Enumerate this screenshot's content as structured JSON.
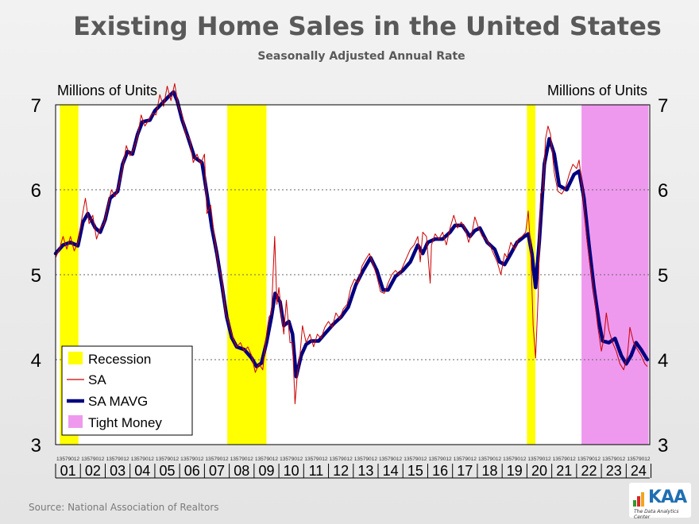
{
  "title": "Existing Home Sales in the United States",
  "subtitle": "Seasonally Adjusted Annual Rate",
  "source": "Source:  National Association of Realtors",
  "logo": {
    "name": "KAA",
    "tagline": "The Data Analytics Center"
  },
  "colors": {
    "recession": "#ffff00",
    "tight_money": "#ee99ee",
    "sa_line": "#cc0000",
    "mavg_line": "#000080",
    "gridline": "#666666"
  },
  "chart_data": {
    "type": "line",
    "ylabel_left": "Millions of Units",
    "ylabel_right": "Millions of Units",
    "ylim": [
      3,
      7
    ],
    "yticks": [
      "3",
      "4",
      "5",
      "6",
      "7"
    ],
    "xlim": [
      2001.0,
      2024.95
    ],
    "year_labels": [
      "01",
      "02",
      "03",
      "04",
      "05",
      "06",
      "07",
      "08",
      "09",
      "10",
      "11",
      "12",
      "13",
      "14",
      "15",
      "16",
      "17",
      "18",
      "19",
      "20",
      "21",
      "22",
      "23",
      "24"
    ],
    "month_tick_label": "13579012",
    "grid": "horizontal dotted",
    "legend_position": "bottom-left",
    "legend": [
      {
        "label": "Recession",
        "kind": "box",
        "color": "#ffff00"
      },
      {
        "label": "SA",
        "kind": "line",
        "color": "#cc0000"
      },
      {
        "label": "SA MAVG",
        "kind": "line",
        "color": "#000080"
      },
      {
        "label": "Tight Money",
        "kind": "box",
        "color": "#ee99ee"
      }
    ],
    "bands": [
      {
        "name": "Recession",
        "start": 2001.17,
        "end": 2001.92
      },
      {
        "name": "Recession",
        "start": 2007.92,
        "end": 2009.5
      },
      {
        "name": "Recession",
        "start": 2020.0,
        "end": 2020.34
      },
      {
        "name": "Tight Money",
        "start": 2022.2,
        "end": 2024.9
      }
    ],
    "series": [
      {
        "name": "SA MAVG",
        "points": [
          [
            2001.0,
            5.25
          ],
          [
            2001.3,
            5.35
          ],
          [
            2001.6,
            5.38
          ],
          [
            2001.9,
            5.34
          ],
          [
            2002.1,
            5.62
          ],
          [
            2002.3,
            5.72
          ],
          [
            2002.6,
            5.55
          ],
          [
            2002.8,
            5.5
          ],
          [
            2003.0,
            5.65
          ],
          [
            2003.2,
            5.9
          ],
          [
            2003.5,
            5.98
          ],
          [
            2003.7,
            6.3
          ],
          [
            2003.9,
            6.45
          ],
          [
            2004.1,
            6.42
          ],
          [
            2004.3,
            6.65
          ],
          [
            2004.5,
            6.8
          ],
          [
            2004.8,
            6.82
          ],
          [
            2005.0,
            6.93
          ],
          [
            2005.3,
            7.02
          ],
          [
            2005.5,
            7.08
          ],
          [
            2005.75,
            7.15
          ],
          [
            2005.9,
            7.05
          ],
          [
            2006.1,
            6.82
          ],
          [
            2006.3,
            6.65
          ],
          [
            2006.6,
            6.38
          ],
          [
            2006.9,
            6.32
          ],
          [
            2007.1,
            5.95
          ],
          [
            2007.3,
            5.55
          ],
          [
            2007.5,
            5.25
          ],
          [
            2007.7,
            4.88
          ],
          [
            2007.9,
            4.5
          ],
          [
            2008.1,
            4.26
          ],
          [
            2008.3,
            4.15
          ],
          [
            2008.6,
            4.12
          ],
          [
            2008.9,
            4.02
          ],
          [
            2009.1,
            3.92
          ],
          [
            2009.3,
            3.96
          ],
          [
            2009.5,
            4.2
          ],
          [
            2009.7,
            4.5
          ],
          [
            2009.85,
            4.78
          ],
          [
            2010.05,
            4.68
          ],
          [
            2010.2,
            4.4
          ],
          [
            2010.4,
            4.45
          ],
          [
            2010.55,
            4.3
          ],
          [
            2010.7,
            3.8
          ],
          [
            2010.9,
            4.05
          ],
          [
            2011.1,
            4.18
          ],
          [
            2011.3,
            4.22
          ],
          [
            2011.6,
            4.22
          ],
          [
            2011.9,
            4.32
          ],
          [
            2012.2,
            4.42
          ],
          [
            2012.5,
            4.5
          ],
          [
            2012.8,
            4.62
          ],
          [
            2013.1,
            4.88
          ],
          [
            2013.4,
            5.05
          ],
          [
            2013.7,
            5.2
          ],
          [
            2013.95,
            5.05
          ],
          [
            2014.2,
            4.82
          ],
          [
            2014.4,
            4.82
          ],
          [
            2014.7,
            4.98
          ],
          [
            2015.0,
            5.05
          ],
          [
            2015.3,
            5.15
          ],
          [
            2015.6,
            5.35
          ],
          [
            2015.8,
            5.25
          ],
          [
            2016.0,
            5.38
          ],
          [
            2016.3,
            5.42
          ],
          [
            2016.6,
            5.42
          ],
          [
            2016.9,
            5.5
          ],
          [
            2017.1,
            5.58
          ],
          [
            2017.4,
            5.58
          ],
          [
            2017.7,
            5.45
          ],
          [
            2017.9,
            5.52
          ],
          [
            2018.1,
            5.55
          ],
          [
            2018.4,
            5.38
          ],
          [
            2018.7,
            5.3
          ],
          [
            2018.9,
            5.15
          ],
          [
            2019.1,
            5.12
          ],
          [
            2019.3,
            5.22
          ],
          [
            2019.6,
            5.38
          ],
          [
            2019.9,
            5.45
          ],
          [
            2020.05,
            5.48
          ],
          [
            2020.2,
            5.25
          ],
          [
            2020.35,
            4.85
          ],
          [
            2020.5,
            5.4
          ],
          [
            2020.7,
            6.3
          ],
          [
            2020.9,
            6.6
          ],
          [
            2021.1,
            6.42
          ],
          [
            2021.3,
            6.05
          ],
          [
            2021.6,
            6.0
          ],
          [
            2021.9,
            6.18
          ],
          [
            2022.1,
            6.22
          ],
          [
            2022.3,
            5.9
          ],
          [
            2022.5,
            5.35
          ],
          [
            2022.7,
            4.85
          ],
          [
            2022.9,
            4.45
          ],
          [
            2023.05,
            4.22
          ],
          [
            2023.3,
            4.2
          ],
          [
            2023.55,
            4.25
          ],
          [
            2023.8,
            4.05
          ],
          [
            2024.0,
            3.95
          ],
          [
            2024.2,
            4.05
          ],
          [
            2024.4,
            4.2
          ],
          [
            2024.6,
            4.12
          ],
          [
            2024.85,
            4.0
          ]
        ]
      },
      {
        "name": "SA",
        "points": [
          [
            2001.0,
            5.2
          ],
          [
            2001.15,
            5.3
          ],
          [
            2001.3,
            5.45
          ],
          [
            2001.45,
            5.3
          ],
          [
            2001.6,
            5.45
          ],
          [
            2001.75,
            5.28
          ],
          [
            2001.9,
            5.38
          ],
          [
            2002.05,
            5.65
          ],
          [
            2002.2,
            5.9
          ],
          [
            2002.35,
            5.6
          ],
          [
            2002.5,
            5.7
          ],
          [
            2002.65,
            5.42
          ],
          [
            2002.8,
            5.55
          ],
          [
            2002.95,
            5.6
          ],
          [
            2003.1,
            5.8
          ],
          [
            2003.25,
            6.0
          ],
          [
            2003.4,
            5.92
          ],
          [
            2003.55,
            6.05
          ],
          [
            2003.7,
            6.25
          ],
          [
            2003.85,
            6.52
          ],
          [
            2004.0,
            6.4
          ],
          [
            2004.15,
            6.48
          ],
          [
            2004.3,
            6.62
          ],
          [
            2004.45,
            6.88
          ],
          [
            2004.6,
            6.75
          ],
          [
            2004.75,
            6.82
          ],
          [
            2004.9,
            6.9
          ],
          [
            2005.05,
            6.88
          ],
          [
            2005.2,
            7.12
          ],
          [
            2005.35,
            6.98
          ],
          [
            2005.5,
            7.22
          ],
          [
            2005.65,
            7.05
          ],
          [
            2005.8,
            7.25
          ],
          [
            2005.95,
            6.98
          ],
          [
            2006.1,
            6.88
          ],
          [
            2006.25,
            6.65
          ],
          [
            2006.4,
            6.6
          ],
          [
            2006.55,
            6.32
          ],
          [
            2006.7,
            6.42
          ],
          [
            2006.85,
            6.3
          ],
          [
            2007.0,
            6.42
          ],
          [
            2007.1,
            5.72
          ],
          [
            2007.25,
            5.82
          ],
          [
            2007.4,
            5.45
          ],
          [
            2007.55,
            5.12
          ],
          [
            2007.7,
            4.95
          ],
          [
            2007.85,
            4.55
          ],
          [
            2008.0,
            4.42
          ],
          [
            2008.15,
            4.25
          ],
          [
            2008.3,
            4.15
          ],
          [
            2008.45,
            4.2
          ],
          [
            2008.6,
            4.1
          ],
          [
            2008.75,
            4.15
          ],
          [
            2008.9,
            4.05
          ],
          [
            2009.05,
            3.85
          ],
          [
            2009.2,
            3.95
          ],
          [
            2009.35,
            3.88
          ],
          [
            2009.5,
            4.3
          ],
          [
            2009.6,
            4.5
          ],
          [
            2009.7,
            4.55
          ],
          [
            2009.83,
            5.45
          ],
          [
            2009.92,
            4.65
          ],
          [
            2010.0,
            4.85
          ],
          [
            2010.1,
            4.55
          ],
          [
            2010.2,
            4.3
          ],
          [
            2010.3,
            4.7
          ],
          [
            2010.45,
            4.2
          ],
          [
            2010.55,
            4.2
          ],
          [
            2010.65,
            3.48
          ],
          [
            2010.75,
            3.85
          ],
          [
            2010.85,
            4.05
          ],
          [
            2010.95,
            4.4
          ],
          [
            2011.1,
            4.2
          ],
          [
            2011.25,
            4.3
          ],
          [
            2011.4,
            4.15
          ],
          [
            2011.55,
            4.3
          ],
          [
            2011.7,
            4.25
          ],
          [
            2011.85,
            4.38
          ],
          [
            2012.0,
            4.45
          ],
          [
            2012.15,
            4.38
          ],
          [
            2012.3,
            4.55
          ],
          [
            2012.45,
            4.48
          ],
          [
            2012.6,
            4.6
          ],
          [
            2012.75,
            4.65
          ],
          [
            2012.9,
            4.85
          ],
          [
            2013.05,
            4.95
          ],
          [
            2013.2,
            4.9
          ],
          [
            2013.35,
            5.1
          ],
          [
            2013.5,
            5.18
          ],
          [
            2013.65,
            5.25
          ],
          [
            2013.8,
            5.12
          ],
          [
            2013.95,
            4.98
          ],
          [
            2014.1,
            4.8
          ],
          [
            2014.25,
            4.78
          ],
          [
            2014.4,
            4.9
          ],
          [
            2014.55,
            5.0
          ],
          [
            2014.7,
            5.05
          ],
          [
            2014.85,
            5.0
          ],
          [
            2015.0,
            5.1
          ],
          [
            2015.15,
            5.2
          ],
          [
            2015.3,
            5.3
          ],
          [
            2015.45,
            5.35
          ],
          [
            2015.6,
            5.45
          ],
          [
            2015.7,
            5.15
          ],
          [
            2015.8,
            5.5
          ],
          [
            2015.95,
            5.45
          ],
          [
            2016.1,
            4.9
          ],
          [
            2016.15,
            5.35
          ],
          [
            2016.3,
            5.48
          ],
          [
            2016.45,
            5.42
          ],
          [
            2016.6,
            5.5
          ],
          [
            2016.75,
            5.35
          ],
          [
            2016.9,
            5.55
          ],
          [
            2017.05,
            5.7
          ],
          [
            2017.2,
            5.55
          ],
          [
            2017.35,
            5.62
          ],
          [
            2017.5,
            5.55
          ],
          [
            2017.65,
            5.38
          ],
          [
            2017.8,
            5.52
          ],
          [
            2017.9,
            5.68
          ],
          [
            2018.05,
            5.55
          ],
          [
            2018.2,
            5.45
          ],
          [
            2018.35,
            5.42
          ],
          [
            2018.5,
            5.35
          ],
          [
            2018.65,
            5.25
          ],
          [
            2018.8,
            5.15
          ],
          [
            2018.95,
            5.0
          ],
          [
            2019.1,
            5.25
          ],
          [
            2019.2,
            5.2
          ],
          [
            2019.35,
            5.38
          ],
          [
            2019.5,
            5.3
          ],
          [
            2019.65,
            5.42
          ],
          [
            2019.8,
            5.45
          ],
          [
            2019.95,
            5.5
          ],
          [
            2020.05,
            5.75
          ],
          [
            2020.15,
            5.3
          ],
          [
            2020.25,
            4.4
          ],
          [
            2020.35,
            4.02
          ],
          [
            2020.45,
            4.75
          ],
          [
            2020.55,
            5.95
          ],
          [
            2020.65,
            6.0
          ],
          [
            2020.75,
            6.6
          ],
          [
            2020.85,
            6.75
          ],
          [
            2020.95,
            6.65
          ],
          [
            2021.1,
            6.2
          ],
          [
            2021.25,
            5.98
          ],
          [
            2021.4,
            5.95
          ],
          [
            2021.55,
            6.02
          ],
          [
            2021.7,
            6.18
          ],
          [
            2021.85,
            6.3
          ],
          [
            2022.0,
            6.25
          ],
          [
            2022.1,
            6.35
          ],
          [
            2022.25,
            5.98
          ],
          [
            2022.4,
            5.45
          ],
          [
            2022.55,
            5.1
          ],
          [
            2022.7,
            4.78
          ],
          [
            2022.85,
            4.4
          ],
          [
            2023.0,
            4.1
          ],
          [
            2023.1,
            4.25
          ],
          [
            2023.2,
            4.55
          ],
          [
            2023.3,
            4.35
          ],
          [
            2023.45,
            4.2
          ],
          [
            2023.6,
            4.1
          ],
          [
            2023.75,
            3.95
          ],
          [
            2023.9,
            3.88
          ],
          [
            2024.05,
            4.05
          ],
          [
            2024.15,
            4.38
          ],
          [
            2024.3,
            4.2
          ],
          [
            2024.45,
            4.12
          ],
          [
            2024.6,
            4.05
          ],
          [
            2024.75,
            3.95
          ],
          [
            2024.85,
            3.92
          ]
        ]
      }
    ]
  }
}
